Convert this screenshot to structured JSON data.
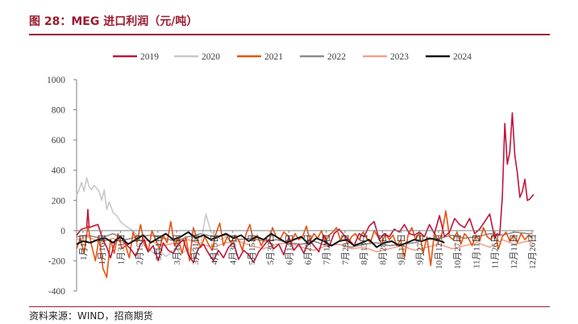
{
  "figure": {
    "title": "图 28：MEG 进口利润（元/吨）",
    "source": "资料来源：WIND，招商期货"
  },
  "colors": {
    "accent": "#9b1c31",
    "2019": "#c0143c",
    "2020": "#c8c8c8",
    "2021": "#e8520e",
    "2022": "#8c8c8c",
    "2023": "#f4a18c",
    "2024": "#111111"
  },
  "chart_data": {
    "type": "line",
    "title": "",
    "xlabel": "",
    "ylabel": "",
    "ylim": [
      -400,
      1000
    ],
    "yticks": [
      1000,
      800,
      600,
      400,
      200,
      0,
      -200,
      -400
    ],
    "legend_position": "top",
    "grid": false,
    "x_tick_labels": [
      "1月1日",
      "1月16日",
      "1月31日",
      "2月15日",
      "3月1日",
      "3月16日",
      "3月31日",
      "4月15日",
      "4月30日",
      "5月15日",
      "5月30日",
      "6月14日",
      "6月29日",
      "7月14日",
      "7月29日",
      "8月13日",
      "8月28日",
      "9月12日",
      "9月27日",
      "10月12日",
      "10月27日",
      "11月11日",
      "11月26日",
      "12月11日",
      "12月26日"
    ],
    "series": [
      {
        "name": "2019",
        "color": "#c0143c",
        "x": [
          1,
          5,
          9,
          10,
          11,
          14,
          18,
          22,
          25,
          28,
          32,
          36,
          40,
          44,
          48,
          52,
          55,
          58,
          62,
          66,
          70,
          74,
          78,
          82,
          86,
          90,
          94,
          98,
          102,
          106,
          110,
          114,
          118,
          122,
          126,
          130,
          134,
          138,
          142,
          146,
          150,
          154,
          158,
          162,
          166,
          170,
          174,
          178,
          182,
          186,
          190,
          194,
          198,
          202,
          206,
          210,
          214,
          218,
          222,
          226,
          230,
          234,
          238,
          242,
          246,
          250,
          254,
          258,
          262,
          266,
          270,
          274,
          278,
          282,
          286,
          290,
          294,
          298,
          302,
          306,
          310,
          314,
          318,
          322,
          326,
          330,
          334,
          336,
          338,
          340,
          342,
          344,
          346,
          348,
          350,
          352,
          354,
          356,
          358,
          360,
          362,
          364,
          365
        ],
        "y": [
          -30,
          10,
          20,
          140,
          20,
          30,
          40,
          -60,
          -110,
          -180,
          -60,
          -40,
          -90,
          -120,
          -170,
          -90,
          -60,
          -140,
          -100,
          -200,
          -80,
          -130,
          -150,
          -90,
          -60,
          -160,
          -210,
          -120,
          -90,
          -150,
          -200,
          -130,
          -180,
          -110,
          -80,
          -190,
          -130,
          -160,
          -210,
          -140,
          -100,
          -60,
          -120,
          -90,
          -160,
          -40,
          -130,
          -90,
          -150,
          -60,
          -100,
          -140,
          -30,
          -110,
          -20,
          10,
          -30,
          -60,
          -100,
          -20,
          -40,
          30,
          60,
          -60,
          -20,
          -40,
          10,
          -10,
          40,
          -20,
          -30,
          -10,
          -40,
          40,
          -20,
          100,
          -40,
          -10,
          80,
          40,
          20,
          80,
          -20,
          10,
          60,
          110,
          -50,
          -20,
          -30,
          220,
          710,
          440,
          520,
          780,
          500,
          380,
          220,
          260,
          340,
          200,
          210,
          230,
          240
        ]
      },
      {
        "name": "2020",
        "color": "#c8c8c8",
        "x": [
          1,
          3,
          5,
          7,
          9,
          11,
          13,
          15,
          17,
          19,
          21,
          23,
          25,
          27,
          30,
          33,
          36,
          40,
          44,
          48,
          52,
          56,
          60,
          64,
          68,
          72,
          76,
          80,
          84,
          88,
          92,
          96,
          100,
          104,
          108,
          112,
          116,
          120
        ],
        "y": [
          230,
          270,
          320,
          260,
          350,
          290,
          270,
          300,
          280,
          260,
          200,
          270,
          140,
          190,
          120,
          100,
          60,
          30,
          10,
          -20,
          -60,
          -110,
          -130,
          -160,
          -140,
          -170,
          -150,
          -110,
          -160,
          -130,
          -120,
          -150,
          -80,
          110,
          -10,
          -30,
          -60,
          -40
        ]
      },
      {
        "name": "2021",
        "color": "#e8520e",
        "x": [
          1,
          4,
          7,
          10,
          13,
          16,
          19,
          22,
          25,
          28,
          31,
          34,
          37,
          40,
          43,
          46,
          49,
          52,
          55,
          58,
          61,
          64,
          67,
          70,
          73,
          76,
          79,
          82,
          85,
          88,
          91,
          94,
          97,
          100,
          103,
          106,
          109,
          112,
          115,
          118,
          121,
          124,
          127,
          130,
          133,
          136,
          139,
          142,
          145,
          148,
          151,
          154,
          157,
          160,
          163,
          166,
          169,
          172,
          175,
          178,
          181,
          184,
          187,
          190,
          193,
          196,
          199,
          202,
          205,
          208,
          211,
          214,
          217,
          220,
          223,
          226,
          229,
          232,
          235,
          238,
          241,
          244,
          247,
          250,
          253,
          256,
          259,
          262,
          265,
          268,
          271,
          274,
          277,
          280,
          283,
          286,
          289,
          292,
          295,
          298,
          301,
          304,
          307,
          310,
          313,
          316,
          319,
          322,
          325,
          328,
          331,
          334,
          337,
          340,
          343,
          346,
          349,
          352,
          355,
          358,
          361,
          364
        ],
        "y": [
          -120,
          -50,
          -150,
          30,
          -100,
          -200,
          -40,
          -250,
          -310,
          -60,
          -150,
          -20,
          -120,
          -100,
          -180,
          -10,
          -80,
          40,
          -90,
          -140,
          0,
          -60,
          -120,
          -30,
          -80,
          60,
          -100,
          -50,
          -150,
          -40,
          -200,
          20,
          -60,
          -110,
          -40,
          -90,
          -130,
          -20,
          50,
          -100,
          -40,
          -80,
          -30,
          -60,
          -130,
          -20,
          40,
          -70,
          -30,
          -100,
          -50,
          -80,
          20,
          -40,
          -60,
          -10,
          -30,
          -80,
          -20,
          -60,
          -40,
          30,
          -70,
          -20,
          -50,
          0,
          -80,
          -30,
          -10,
          20,
          -60,
          -30,
          -90,
          -40,
          -20,
          -60,
          -10,
          -50,
          -80,
          0,
          -40,
          -90,
          -20,
          -60,
          -30,
          -100,
          -60,
          -180,
          -30,
          20,
          -60,
          -10,
          -150,
          -40,
          -230,
          -10,
          -80,
          -20,
          130,
          -40,
          -60,
          -10,
          -90,
          -20,
          -50,
          -100,
          -30,
          -70,
          20,
          -40,
          -60,
          -10,
          -120,
          -40,
          -10,
          -70,
          -30,
          -80,
          -20,
          -60,
          -30,
          -50
        ]
      },
      {
        "name": "2022",
        "color": "#8c8c8c",
        "x": [
          1,
          10,
          20,
          30,
          40,
          50,
          60,
          70,
          80,
          90,
          100,
          110,
          120,
          130,
          140,
          150,
          160,
          170,
          180,
          190,
          200,
          210,
          220,
          230,
          240,
          250,
          260,
          270,
          280,
          290,
          300,
          310,
          320,
          330,
          340,
          350,
          360,
          364
        ],
        "y": [
          -40,
          -30,
          -50,
          -20,
          -60,
          -40,
          -30,
          -50,
          -70,
          -40,
          -20,
          -40,
          -30,
          -60,
          -50,
          -70,
          -60,
          -80,
          -90,
          -70,
          -100,
          -90,
          -110,
          -90,
          -80,
          -100,
          -90,
          -80,
          -60,
          -50,
          -30,
          -50,
          -40,
          -20,
          -30,
          -10,
          -20,
          -20
        ]
      },
      {
        "name": "2023",
        "color": "#f4a18c",
        "x": [
          1,
          10,
          20,
          30,
          40,
          50,
          60,
          70,
          80,
          90,
          100,
          110,
          120,
          130,
          140,
          150,
          160,
          170,
          180,
          190,
          200,
          210,
          220,
          230,
          240,
          250,
          260,
          270,
          280,
          290,
          300,
          310,
          320,
          330,
          340,
          350,
          360,
          364
        ],
        "y": [
          -60,
          -40,
          -80,
          -50,
          -90,
          -60,
          -70,
          -100,
          -80,
          -60,
          -90,
          -110,
          -80,
          -70,
          -100,
          -120,
          -90,
          -80,
          -110,
          -130,
          -100,
          -90,
          -120,
          -110,
          -140,
          -120,
          -100,
          -130,
          -110,
          -90,
          -120,
          -100,
          -80,
          -110,
          -60,
          -90,
          -70,
          -80
        ]
      },
      {
        "name": "2024",
        "color": "#111111",
        "x": [
          1,
          6,
          12,
          18,
          24,
          30,
          36,
          42,
          48,
          54,
          60,
          66,
          72,
          78,
          84,
          90,
          96,
          102,
          108,
          114,
          120,
          126,
          132,
          138,
          144,
          150,
          156,
          162,
          168,
          174,
          180,
          186,
          192,
          198,
          204,
          210,
          216,
          222,
          228,
          234,
          240,
          246,
          252,
          258,
          264,
          270,
          276,
          282,
          288,
          294
        ],
        "y": [
          -90,
          -70,
          -80,
          -60,
          -50,
          -80,
          -40,
          -90,
          -60,
          -30,
          -80,
          -50,
          -20,
          -60,
          -40,
          -10,
          -50,
          -30,
          -60,
          -40,
          -20,
          -50,
          -30,
          -70,
          -40,
          -60,
          -20,
          -50,
          -80,
          -60,
          -40,
          -90,
          -50,
          -70,
          -100,
          -70,
          -60,
          -100,
          -80,
          -60,
          -110,
          -80,
          -70,
          -100,
          -80,
          -60,
          -70,
          -50,
          -60,
          -80
        ]
      }
    ]
  }
}
